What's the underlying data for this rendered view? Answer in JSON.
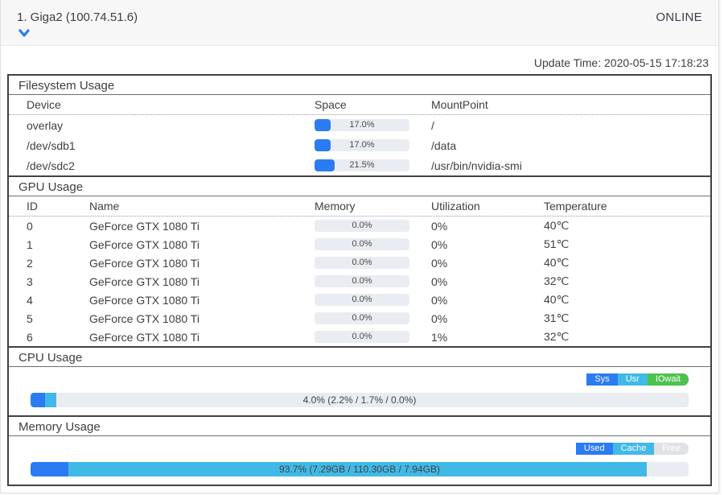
{
  "header": {
    "title": "1. Giga2 (100.74.51.6)",
    "status": "ONLINE",
    "chevron_icon": "chevron-down-icon"
  },
  "update_time": "Update Time: 2020-05-15 17:18:23",
  "colors": {
    "blue": "#2b7bf2",
    "light_blue": "#41b9e6",
    "green": "#4dc24f",
    "free_gray": "#e0e3e6",
    "track": "#e9edf1"
  },
  "filesystem": {
    "title": "Filesystem Usage",
    "columns": [
      "Device",
      "Space",
      "MountPoint"
    ],
    "rows": [
      {
        "device": "overlay",
        "space_pct": 17.0,
        "space_label": "17.0%",
        "mount": "/"
      },
      {
        "device": "/dev/sdb1",
        "space_pct": 17.0,
        "space_label": "17.0%",
        "mount": "/data"
      },
      {
        "device": "/dev/sdc2",
        "space_pct": 21.5,
        "space_label": "21.5%",
        "mount": "/usr/bin/nvidia-smi"
      }
    ]
  },
  "gpu": {
    "title": "GPU Usage",
    "columns": [
      "ID",
      "Name",
      "Memory",
      "Utilization",
      "Temperature"
    ],
    "rows": [
      {
        "id": "0",
        "name": "GeForce GTX 1080 Ti",
        "memory_pct": 0,
        "memory_label": "0.0%",
        "utilization": "0%",
        "temperature": "40℃"
      },
      {
        "id": "1",
        "name": "GeForce GTX 1080 Ti",
        "memory_pct": 0,
        "memory_label": "0.0%",
        "utilization": "0%",
        "temperature": "51℃"
      },
      {
        "id": "2",
        "name": "GeForce GTX 1080 Ti",
        "memory_pct": 0,
        "memory_label": "0.0%",
        "utilization": "0%",
        "temperature": "40℃"
      },
      {
        "id": "3",
        "name": "GeForce GTX 1080 Ti",
        "memory_pct": 0,
        "memory_label": "0.0%",
        "utilization": "0%",
        "temperature": "32℃"
      },
      {
        "id": "4",
        "name": "GeForce GTX 1080 Ti",
        "memory_pct": 0,
        "memory_label": "0.0%",
        "utilization": "0%",
        "temperature": "40℃"
      },
      {
        "id": "5",
        "name": "GeForce GTX 1080 Ti",
        "memory_pct": 0,
        "memory_label": "0.0%",
        "utilization": "0%",
        "temperature": "31℃"
      },
      {
        "id": "6",
        "name": "GeForce GTX 1080 Ti",
        "memory_pct": 0,
        "memory_label": "0.0%",
        "utilization": "1%",
        "temperature": "32℃"
      }
    ]
  },
  "cpu": {
    "title": "CPU Usage",
    "legend": [
      {
        "label": "Sys",
        "color": "#2b7bf2"
      },
      {
        "label": "Usr",
        "color": "#41b9e6"
      },
      {
        "label": "IOwait",
        "color": "#4dc24f"
      }
    ],
    "bar": {
      "label": "4.0% (2.2% / 1.7% / 0.0%)",
      "segments": [
        {
          "name": "sys",
          "pct": 2.2,
          "color": "#2b7bf2"
        },
        {
          "name": "usr",
          "pct": 1.7,
          "color": "#41b9e6"
        },
        {
          "name": "iowait",
          "pct": 0,
          "color": "#4dc24f"
        }
      ]
    }
  },
  "memory": {
    "title": "Memory Usage",
    "legend": [
      {
        "label": "Used",
        "color": "#2b7bf2"
      },
      {
        "label": "Cache",
        "color": "#41b9e6"
      },
      {
        "label": "Free",
        "color": "#e0e3e6"
      }
    ],
    "bar": {
      "label": "93.7% (7.29GB / 110.30GB / 7.94GB)",
      "segments": [
        {
          "name": "used",
          "pct": 5.8,
          "color": "#2b7bf2"
        },
        {
          "name": "cache",
          "pct": 87.9,
          "color": "#41b9e6"
        }
      ]
    }
  }
}
